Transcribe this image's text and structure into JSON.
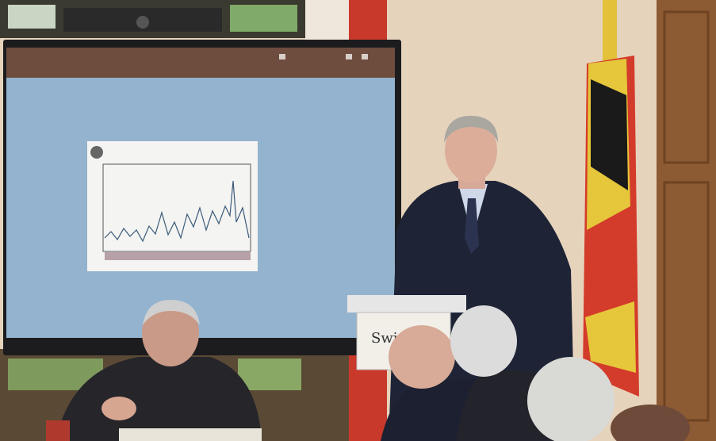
{
  "lectern_sign": {
    "text": "Swi"
  }
}
